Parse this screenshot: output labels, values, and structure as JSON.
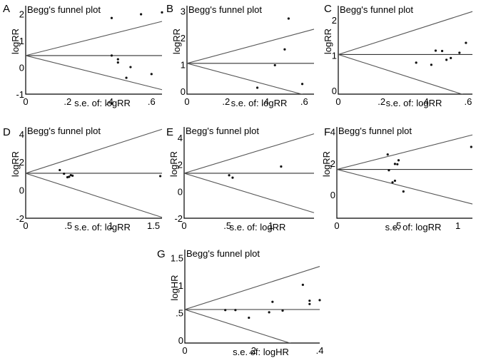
{
  "chart_data": [
    {
      "panel": "A",
      "type": "scatter",
      "title": "Begg's funnel plot",
      "xlabel": "s.e. of: logRR",
      "ylabel": "logRR",
      "xlim": [
        0,
        0.65
      ],
      "ylim": [
        -1,
        2.3
      ],
      "xticks": [
        "0",
        ".2",
        ".4",
        ".6"
      ],
      "xtick_values": [
        0,
        0.2,
        0.4,
        0.6
      ],
      "yticks": [
        "-1",
        "0",
        "1",
        "2"
      ],
      "ytick_values": [
        -1,
        0,
        1,
        2
      ],
      "pooled": 0.44,
      "funnel_limits": true,
      "points": [
        {
          "x": 0.41,
          "y": 1.84
        },
        {
          "x": 0.41,
          "y": 0.44
        },
        {
          "x": 0.44,
          "y": 0.3
        },
        {
          "x": 0.44,
          "y": 0.18
        },
        {
          "x": 0.48,
          "y": -0.39
        },
        {
          "x": 0.5,
          "y": 0.01
        },
        {
          "x": 0.55,
          "y": 1.98
        },
        {
          "x": 0.6,
          "y": -0.25
        },
        {
          "x": 0.65,
          "y": 2.05
        }
      ]
    },
    {
      "panel": "B",
      "type": "scatter",
      "title": "Begg's funnel plot",
      "xlabel": "s.e. of: logRR",
      "ylabel": "logRR",
      "xlim": [
        0,
        0.65
      ],
      "ylim": [
        -0.1,
        3.2
      ],
      "xticks": [
        "0",
        ".2",
        ".4",
        ".6"
      ],
      "xtick_values": [
        0,
        0.2,
        0.4,
        0.6
      ],
      "yticks": [
        "0",
        "1",
        "2",
        "3"
      ],
      "ytick_values": [
        0,
        1,
        2,
        3
      ],
      "pooled": 1.05,
      "funnel_limits": true,
      "points": [
        {
          "x": 0.36,
          "y": 0.14
        },
        {
          "x": 0.45,
          "y": 0.98
        },
        {
          "x": 0.5,
          "y": 1.57
        },
        {
          "x": 0.52,
          "y": 2.72
        },
        {
          "x": 0.59,
          "y": 0.28
        }
      ]
    },
    {
      "panel": "C",
      "type": "scatter",
      "title": "Begg's funnel plot",
      "xlabel": "s.e. of: logRR",
      "ylabel": "logRR",
      "xlim": [
        0,
        0.62
      ],
      "ylim": [
        -0.1,
        2.4
      ],
      "xticks": [
        "0",
        ".2",
        ".4",
        ".6"
      ],
      "xtick_values": [
        0,
        0.2,
        0.4,
        0.6
      ],
      "yticks": [
        "0",
        "1",
        "2"
      ],
      "ytick_values": [
        0,
        1,
        2
      ],
      "pooled": 1.02,
      "funnel_limits": true,
      "points": [
        {
          "x": 0.36,
          "y": 0.79
        },
        {
          "x": 0.43,
          "y": 0.73
        },
        {
          "x": 0.45,
          "y": 1.13
        },
        {
          "x": 0.48,
          "y": 1.12
        },
        {
          "x": 0.5,
          "y": 0.87
        },
        {
          "x": 0.52,
          "y": 0.92
        },
        {
          "x": 0.56,
          "y": 1.07
        },
        {
          "x": 0.59,
          "y": 1.35
        }
      ]
    },
    {
      "panel": "D",
      "type": "scatter",
      "title": "Begg's funnel plot",
      "xlabel": "s.e. of: logRR",
      "ylabel": "logRR",
      "xlim": [
        0,
        1.6
      ],
      "ylim": [
        -2,
        4.5
      ],
      "xticks": [
        "0",
        ".5",
        "1",
        "1.5"
      ],
      "xtick_values": [
        0,
        0.5,
        1,
        1.5
      ],
      "yticks": [
        "-2",
        "0",
        "2",
        "4"
      ],
      "ytick_values": [
        -2,
        0,
        2,
        4
      ],
      "pooled": 1.2,
      "funnel_limits": true,
      "points": [
        {
          "x": 0.4,
          "y": 1.43
        },
        {
          "x": 0.45,
          "y": 1.17
        },
        {
          "x": 0.49,
          "y": 0.92
        },
        {
          "x": 0.51,
          "y": 0.95
        },
        {
          "x": 0.53,
          "y": 1.07
        },
        {
          "x": 0.55,
          "y": 1.03
        },
        {
          "x": 1.58,
          "y": 1.0
        }
      ]
    },
    {
      "panel": "E",
      "type": "scatter",
      "title": "Begg's funnel plot",
      "xlabel": "s.e. of: logRR",
      "ylabel": "logRR",
      "xlim": [
        0,
        1.5
      ],
      "ylim": [
        -2,
        4.8
      ],
      "xticks": [
        "0",
        ".5",
        "1"
      ],
      "xtick_values": [
        0,
        0.5,
        1
      ],
      "yticks": [
        "-2",
        "0",
        "2",
        "4"
      ],
      "ytick_values": [
        -2,
        0,
        2,
        4
      ],
      "pooled": 1.35,
      "funnel_limits": true,
      "points": [
        {
          "x": 0.52,
          "y": 1.2
        },
        {
          "x": 0.56,
          "y": 1.02
        },
        {
          "x": 1.12,
          "y": 1.85
        }
      ]
    },
    {
      "panel": "F",
      "type": "scatter",
      "title": "Begg's funnel plot",
      "xlabel": "s.e. of: logRR",
      "ylabel": "logRR",
      "xlim": [
        0,
        1.12
      ],
      "ylim": [
        -1.5,
        4.3
      ],
      "xticks": [
        "0",
        ".5",
        "1"
      ],
      "xtick_values": [
        0,
        0.5,
        1
      ],
      "yticks": [
        "0",
        "2",
        "4"
      ],
      "ytick_values": [
        0,
        2,
        4
      ],
      "pooled": 1.6,
      "funnel_limits": true,
      "points": [
        {
          "x": 0.42,
          "y": 2.55
        },
        {
          "x": 0.43,
          "y": 1.55
        },
        {
          "x": 0.46,
          "y": 0.78
        },
        {
          "x": 0.48,
          "y": 0.88
        },
        {
          "x": 0.48,
          "y": 1.95
        },
        {
          "x": 0.5,
          "y": 1.93
        },
        {
          "x": 0.51,
          "y": 2.18
        },
        {
          "x": 0.55,
          "y": 0.2
        },
        {
          "x": 1.11,
          "y": 3.03
        }
      ]
    },
    {
      "panel": "G",
      "type": "scatter",
      "title": "Begg's funnel plot",
      "xlabel": "s.e. of: logHR",
      "ylabel": "logHR",
      "xlim": [
        0,
        0.4
      ],
      "ylim": [
        -0.05,
        1.65
      ],
      "xticks": [
        "0",
        ".2",
        ".4"
      ],
      "xtick_values": [
        0,
        0.2,
        0.4
      ],
      "yticks": [
        "0",
        ".5",
        "1",
        "1.5"
      ],
      "ytick_values": [
        0,
        0.5,
        1,
        1.5
      ],
      "pooled": 0.56,
      "funnel_limits": true,
      "points": [
        {
          "x": 0.12,
          "y": 0.55
        },
        {
          "x": 0.15,
          "y": 0.55
        },
        {
          "x": 0.19,
          "y": 0.41
        },
        {
          "x": 0.25,
          "y": 0.51
        },
        {
          "x": 0.26,
          "y": 0.7
        },
        {
          "x": 0.29,
          "y": 0.54
        },
        {
          "x": 0.35,
          "y": 1.01
        },
        {
          "x": 0.37,
          "y": 0.66
        },
        {
          "x": 0.37,
          "y": 0.72
        },
        {
          "x": 0.4,
          "y": 0.73
        }
      ]
    }
  ]
}
